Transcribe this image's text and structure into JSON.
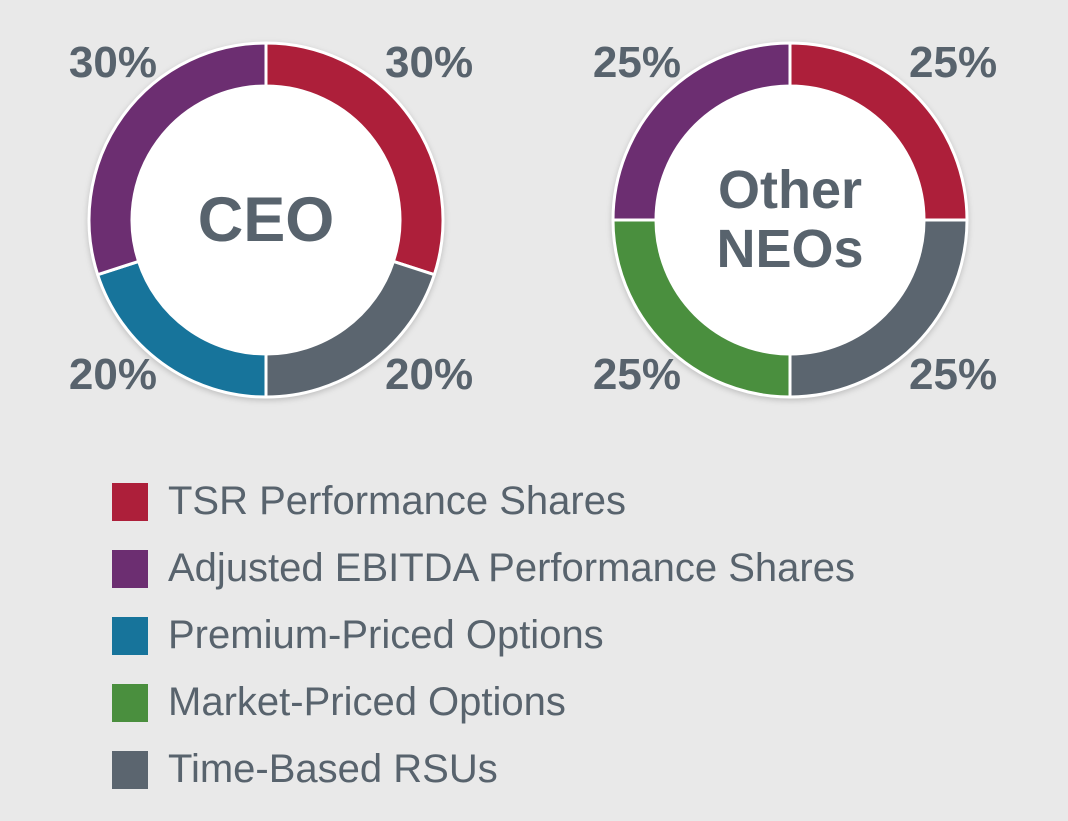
{
  "background_color": "#e9e9e9",
  "text_color": "#58636d",
  "chart_data": [
    {
      "type": "pie",
      "variant": "donut",
      "center_label": "CEO",
      "start_angle_deg": 0,
      "direction": "clockwise",
      "segments": [
        {
          "name": "TSR Performance Shares",
          "value": 30,
          "label": "30%",
          "color": "#ad1f3a",
          "label_position": "top-right"
        },
        {
          "name": "Time-Based RSUs",
          "value": 20,
          "label": "20%",
          "color": "#5b656f",
          "label_position": "bottom-right"
        },
        {
          "name": "Premium-Priced Options",
          "value": 20,
          "label": "20%",
          "color": "#17749b",
          "label_position": "bottom-left"
        },
        {
          "name": "Adjusted EBITDA Performance Shares",
          "value": 30,
          "label": "30%",
          "color": "#6c2e71",
          "label_position": "top-left"
        }
      ]
    },
    {
      "type": "pie",
      "variant": "donut",
      "center_label": "Other\nNEOs",
      "start_angle_deg": 0,
      "direction": "clockwise",
      "segments": [
        {
          "name": "TSR Performance Shares",
          "value": 25,
          "label": "25%",
          "color": "#ad1f3a",
          "label_position": "top-right"
        },
        {
          "name": "Time-Based RSUs",
          "value": 25,
          "label": "25%",
          "color": "#5b656f",
          "label_position": "bottom-right"
        },
        {
          "name": "Market-Priced Options",
          "value": 25,
          "label": "25%",
          "color": "#4a8f3e",
          "label_position": "bottom-left"
        },
        {
          "name": "Adjusted EBITDA Performance Shares",
          "value": 25,
          "label": "25%",
          "color": "#6c2e71",
          "label_position": "top-left"
        }
      ]
    }
  ],
  "legend": {
    "position": "bottom-left",
    "items": [
      {
        "label": "TSR Performance Shares",
        "color": "#ad1f3a"
      },
      {
        "label": "Adjusted EBITDA Performance Shares",
        "color": "#6c2e71"
      },
      {
        "label": "Premium-Priced Options",
        "color": "#17749b"
      },
      {
        "label": "Market-Priced Options",
        "color": "#4a8f3e"
      },
      {
        "label": "Time-Based RSUs",
        "color": "#5b656f"
      }
    ]
  }
}
